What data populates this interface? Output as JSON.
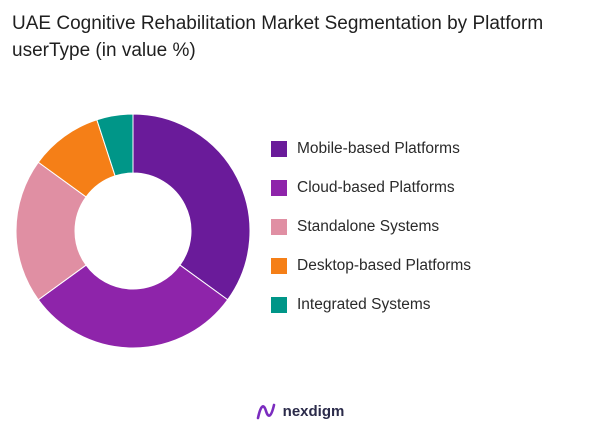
{
  "title_line1": "UAE Cognitive Rehabilitation Market Segmentation by Platform",
  "title_line2": "userType (in value %)",
  "chart_data": {
    "type": "pie",
    "donut": true,
    "title": "UAE Cognitive Rehabilitation Market Segmentation by Platform userType (in value %)",
    "legend_position": "right",
    "categories": [
      "Mobile-based Platforms",
      "Cloud-based Platforms",
      "Standalone Systems",
      "Desktop-based Platforms",
      "Integrated Systems"
    ],
    "values": [
      35,
      30,
      20,
      10,
      5
    ],
    "colors": [
      "#6a1b9a",
      "#8e24aa",
      "#e08fa3",
      "#f57f17",
      "#009688"
    ]
  },
  "brand": {
    "name": "nexdigm",
    "logo_color": "#7b2cbf"
  }
}
